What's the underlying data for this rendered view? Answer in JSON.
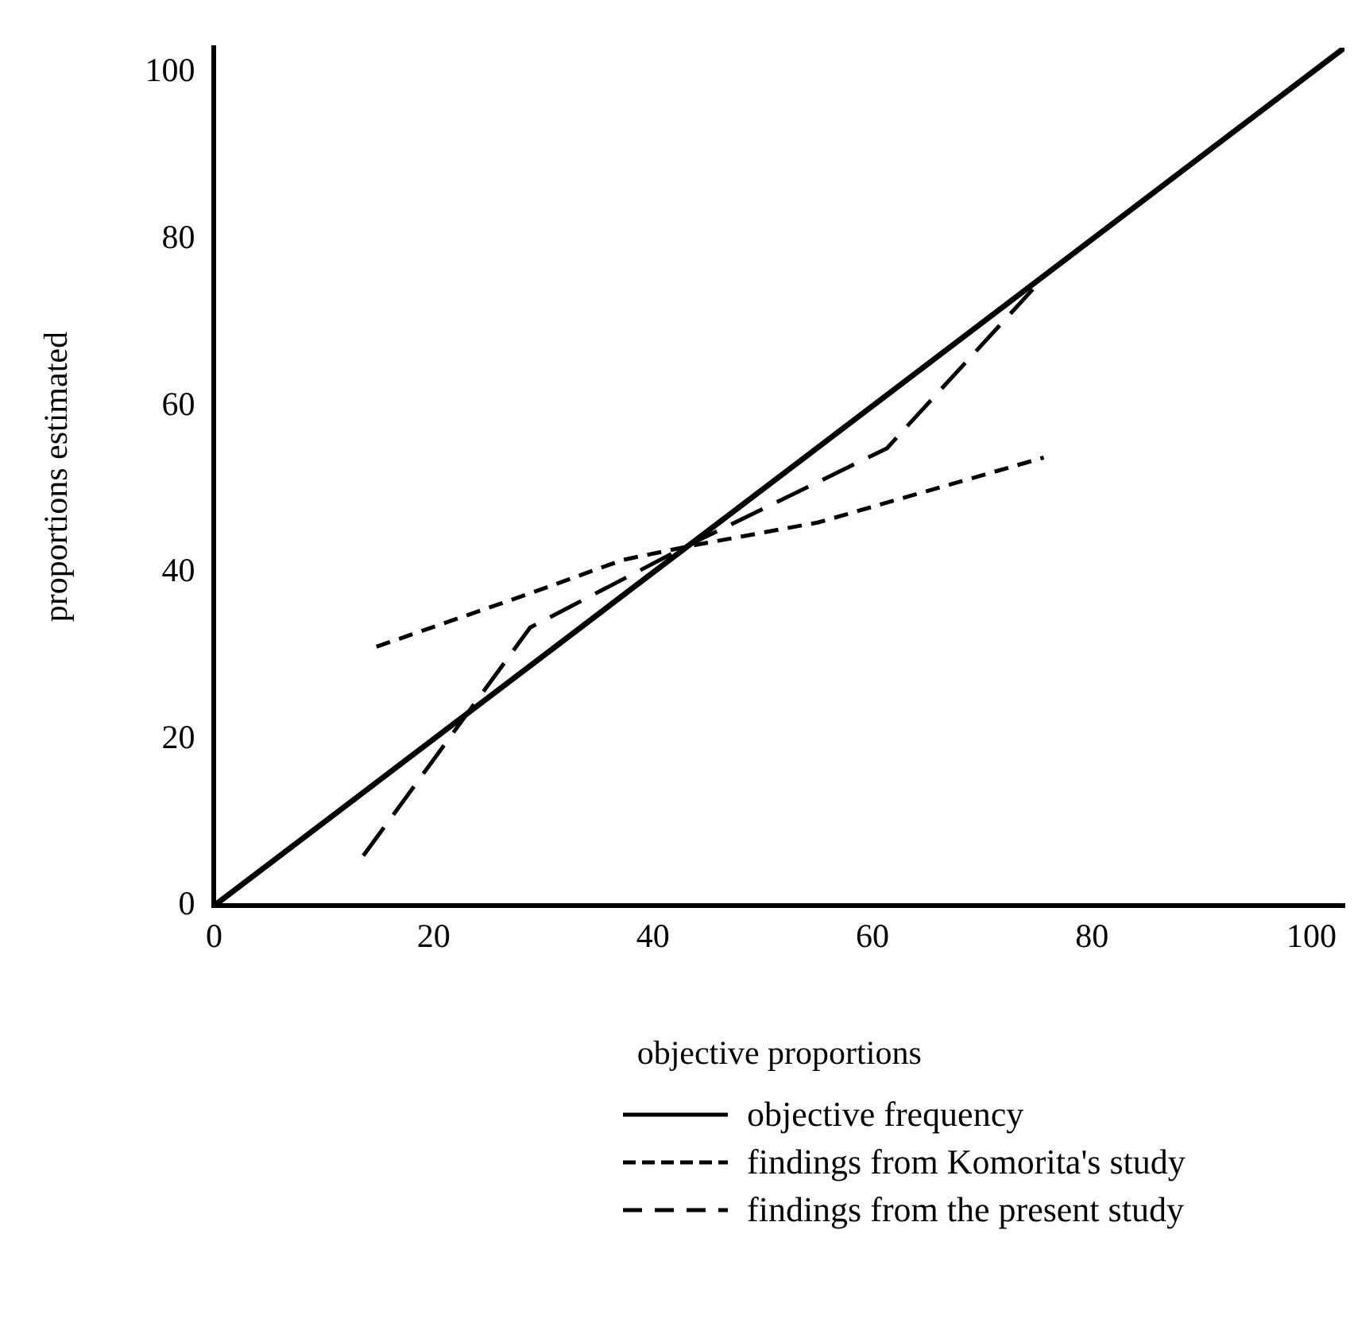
{
  "chart_data": {
    "type": "line",
    "xlabel": "objective proportions",
    "ylabel": "proportions estimated",
    "xlim": [
      0,
      103
    ],
    "ylim": [
      0,
      103
    ],
    "xticks": [
      0,
      20,
      40,
      60,
      80,
      100
    ],
    "yticks": [
      0,
      20,
      40,
      60,
      80,
      100
    ],
    "grid": false,
    "legend": "bottom",
    "marker": "none",
    "series": [
      {
        "name": "objective frequency",
        "color": "#000000",
        "line_style": "solid",
        "x": [
          0,
          103
        ],
        "values": [
          0,
          103
        ]
      },
      {
        "name": "findings from Komorita's study",
        "color": "#000000",
        "line_style": "dotted",
        "x": [
          14.8,
          28.8,
          37.2,
          43.4,
          55.0,
          75.6
        ],
        "values": [
          31.1,
          37.5,
          41.5,
          43.2,
          46.0,
          53.8
        ]
      },
      {
        "name": "findings from the present study",
        "color": "#000000",
        "line_style": "dashed",
        "x": [
          13.6,
          28.8,
          43.1,
          61.3,
          74.6
        ],
        "values": [
          6.0,
          33.4,
          43.2,
          54.9,
          74.0
        ]
      }
    ]
  }
}
